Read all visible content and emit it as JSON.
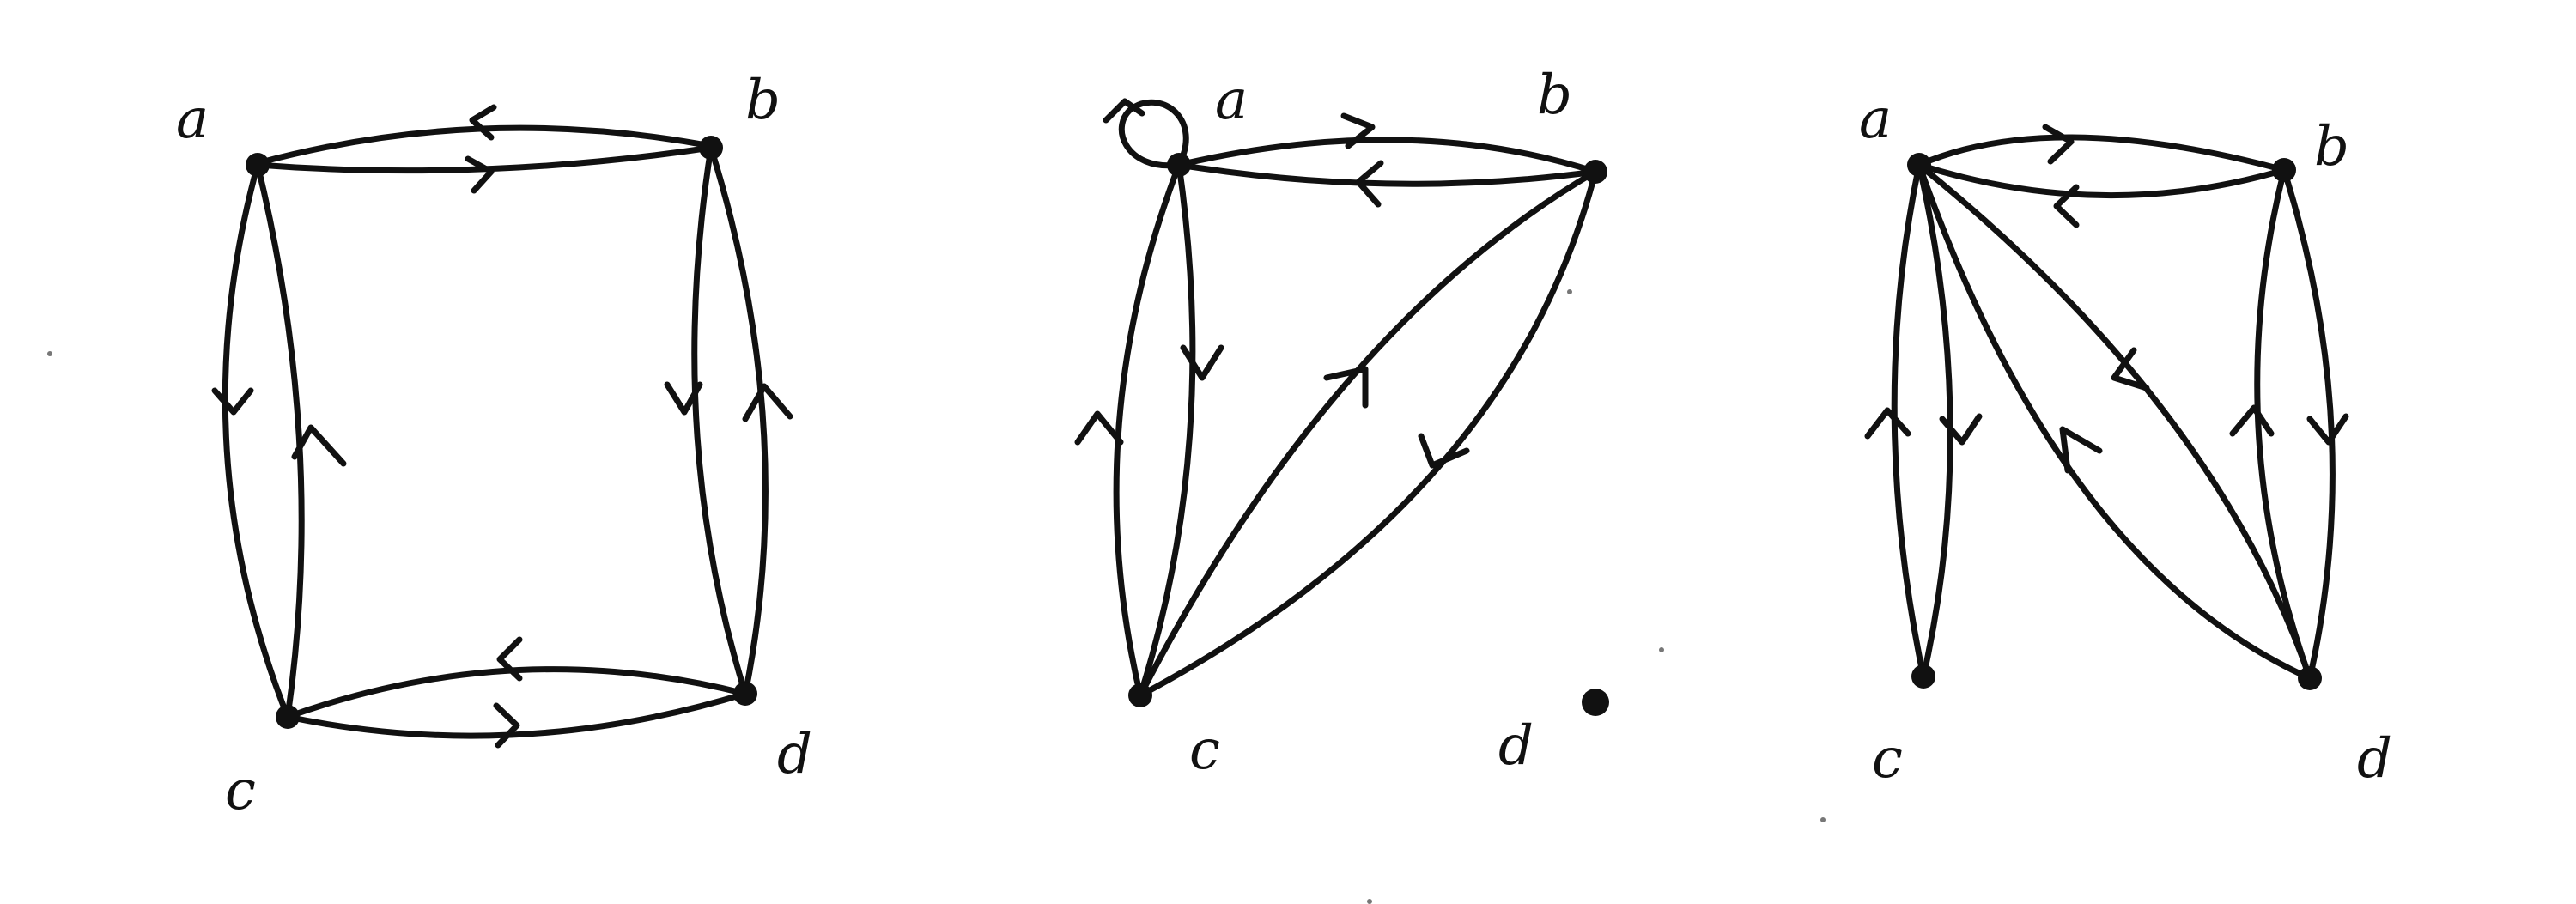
{
  "graphs": [
    {
      "nodes": [
        {
          "id": "a",
          "label": "a"
        },
        {
          "id": "b",
          "label": "b"
        },
        {
          "id": "c",
          "label": "c"
        },
        {
          "id": "d",
          "label": "d"
        }
      ],
      "edges": [
        {
          "from": "b",
          "to": "a"
        },
        {
          "from": "a",
          "to": "b"
        },
        {
          "from": "a",
          "to": "c"
        },
        {
          "from": "c",
          "to": "a"
        },
        {
          "from": "d",
          "to": "b"
        },
        {
          "from": "b",
          "to": "d"
        },
        {
          "from": "d",
          "to": "c"
        },
        {
          "from": "c",
          "to": "d"
        }
      ]
    },
    {
      "nodes": [
        {
          "id": "a",
          "label": "a"
        },
        {
          "id": "b",
          "label": "b"
        },
        {
          "id": "c",
          "label": "c"
        },
        {
          "id": "d",
          "label": "d"
        }
      ],
      "edges": [
        {
          "from": "a",
          "to": "a",
          "type": "loop"
        },
        {
          "from": "a",
          "to": "b"
        },
        {
          "from": "b",
          "to": "a"
        },
        {
          "from": "c",
          "to": "a"
        },
        {
          "from": "a",
          "to": "c"
        },
        {
          "from": "c",
          "to": "b"
        },
        {
          "from": "b",
          "to": "c"
        }
      ]
    },
    {
      "nodes": [
        {
          "id": "a",
          "label": "a"
        },
        {
          "id": "b",
          "label": "b"
        },
        {
          "id": "c",
          "label": "c"
        },
        {
          "id": "d",
          "label": "d"
        }
      ],
      "edges": [
        {
          "from": "a",
          "to": "b"
        },
        {
          "from": "b",
          "to": "a"
        },
        {
          "from": "c",
          "to": "a"
        },
        {
          "from": "a",
          "to": "c"
        },
        {
          "from": "a",
          "to": "d"
        },
        {
          "from": "d",
          "to": "a"
        },
        {
          "from": "d",
          "to": "b"
        },
        {
          "from": "b",
          "to": "d"
        }
      ]
    }
  ]
}
